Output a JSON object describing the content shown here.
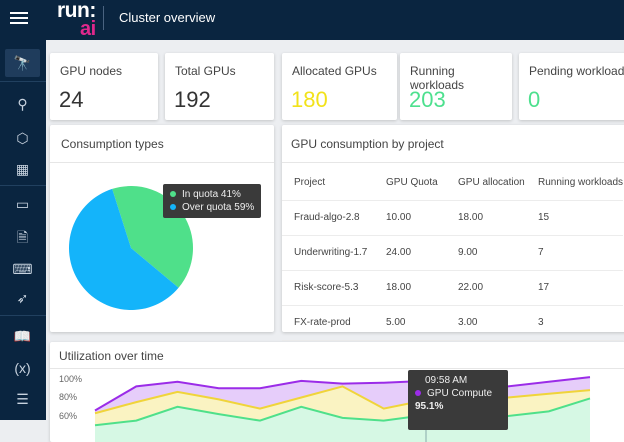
{
  "header": {
    "logo_top": "run:",
    "logo_bottom": "ai",
    "title": "Cluster overview"
  },
  "sidebar": {
    "items": [
      "telescope-icon",
      "workflow-icon",
      "cube-icon",
      "datacenter-icon",
      "briefcase-icon",
      "code-file-icon",
      "laptop-code-icon",
      "rocket-icon",
      "book-icon",
      "variable-icon",
      "database-icon"
    ],
    "active": 0
  },
  "stats": [
    {
      "label": "GPU nodes",
      "value": "24",
      "color": "#333333"
    },
    {
      "label": "Total GPUs",
      "value": "192",
      "color": "#333333"
    },
    {
      "label": "Allocated GPUs",
      "value": "180",
      "color": "#f2e21a"
    },
    {
      "label": "Running workloads",
      "value": "203",
      "color": "#4de08e"
    },
    {
      "label": "Pending workloads",
      "value": "0",
      "color": "#4de08e"
    }
  ],
  "consumption": {
    "title": "Consumption types",
    "tooltip": [
      {
        "label": "In quota 41%",
        "color": "#4fe08a"
      },
      {
        "label": "Over quota 59%",
        "color": "#14b4fa"
      }
    ],
    "chart_data": {
      "type": "pie",
      "slices": [
        {
          "name": "In quota",
          "value": 41,
          "color": "#4fe08a"
        },
        {
          "name": "Over quota",
          "value": 59,
          "color": "#14b4fa"
        }
      ]
    }
  },
  "projects": {
    "title": "GPU consumption by project",
    "columns": [
      "Project",
      "GPU Quota",
      "GPU allocation",
      "Running workloads"
    ],
    "rows": [
      [
        "Fraud-algo-2.8",
        "10.00",
        "18.00",
        "15"
      ],
      [
        "Underwriting-1.7",
        "24.00",
        "9.00",
        "7"
      ],
      [
        "Risk-score-5.3",
        "18.00",
        "22.00",
        "17"
      ],
      [
        "FX-rate-prod",
        "5.00",
        "3.00",
        "3"
      ]
    ]
  },
  "utilization": {
    "title": "Utilization over time",
    "chart_data": {
      "type": "area",
      "yticks": [
        "100%",
        "80%",
        "60%"
      ],
      "ylim": [
        40,
        105
      ],
      "series": [
        {
          "name": "GPU Compute",
          "color": "#9b2ce8",
          "fill": "#e6cdfa",
          "values": [
            66,
            92,
            97,
            90,
            90,
            98,
            95,
            96,
            98,
            93,
            92,
            97,
            102
          ]
        },
        {
          "color": "#f0d43a",
          "fill": "#faf3c2",
          "values": [
            63,
            75,
            86,
            78,
            68,
            80,
            92,
            68,
            77,
            84,
            80,
            84,
            88
          ]
        },
        {
          "color": "#4fe08a",
          "fill": "#d6f8e4",
          "values": [
            50,
            55,
            70,
            62,
            55,
            70,
            58,
            55,
            61,
            62,
            60,
            65,
            79
          ]
        }
      ]
    },
    "tooltip": {
      "time": "09:58 AM",
      "series": "GPU Compute",
      "value": "95.1%"
    }
  }
}
